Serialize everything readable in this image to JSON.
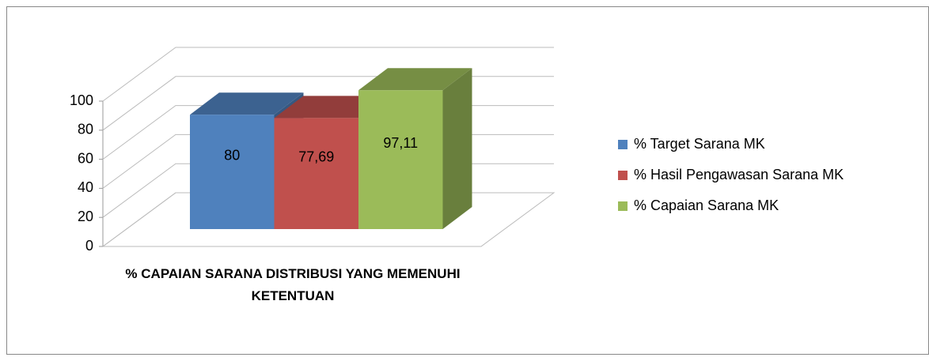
{
  "chart_data": {
    "type": "bar3d",
    "categories": [
      "% CAPAIAN SARANA DISTRIBUSI YANG MEMENUHI KETENTUAN"
    ],
    "series": [
      {
        "name": "% Target Sarana MK",
        "color": "#4f81bd",
        "values": [
          80
        ],
        "value_labels": [
          "80"
        ]
      },
      {
        "name": "% Hasil Pengawasan Sarana MK",
        "color": "#c0504d",
        "values": [
          77.69
        ],
        "value_labels": [
          "77,69"
        ]
      },
      {
        "name": "% Capaian Sarana MK",
        "color": "#9bbb59",
        "values": [
          97.11
        ],
        "value_labels": [
          "97,11"
        ]
      }
    ],
    "ylim": [
      0,
      100
    ],
    "yticks": [
      0,
      20,
      40,
      60,
      80,
      100
    ],
    "grid": true,
    "legend": "right"
  }
}
